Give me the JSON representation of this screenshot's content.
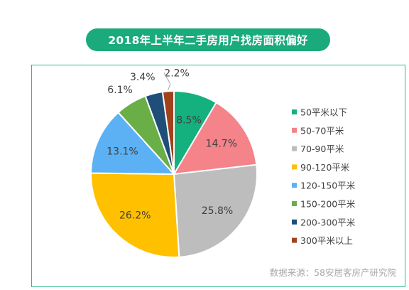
{
  "title": "2018年上半年二手房用户找房面积偏好",
  "source": "数据来源：58安居客房产研究院",
  "chart_data": {
    "type": "pie",
    "title": "2018年上半年二手房用户找房面积偏好",
    "categories": [
      "50平米以下",
      "50-70平米",
      "70-90平米",
      "90-120平米",
      "120-150平米",
      "150-200平米",
      "200-300平米",
      "300平米以上"
    ],
    "values": [
      8.5,
      14.7,
      25.8,
      26.2,
      13.1,
      6.1,
      3.4,
      2.2
    ],
    "labels": [
      "8.5%",
      "14.7%",
      "25.8%",
      "26.2%",
      "13.1%",
      "6.1%",
      "3.4%",
      "2.2%"
    ],
    "colors": [
      "#14b07e",
      "#f4838a",
      "#bdbdbd",
      "#ffc000",
      "#5bb1f3",
      "#6aae47",
      "#1f4e79",
      "#a0421a"
    ],
    "legend_position": "right",
    "start_angle": "top",
    "direction": "clockwise"
  }
}
